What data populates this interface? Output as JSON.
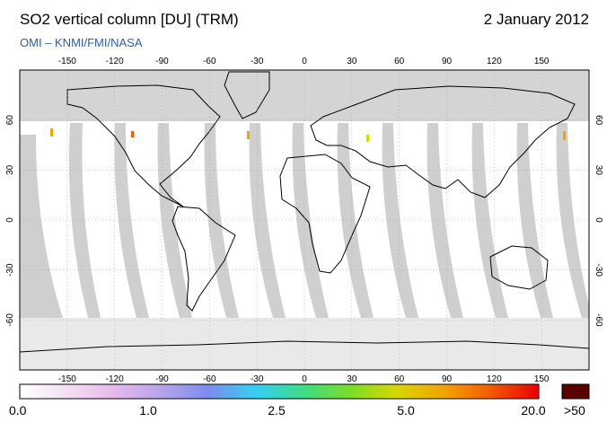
{
  "header": {
    "title": "SO2 vertical column [DU] (TRM)",
    "date": "2 January 2012",
    "credit": "OMI  –  KNMI/FMI/NASA"
  },
  "map": {
    "lon_ticks": [
      "-150",
      "-120",
      "-90",
      "-60",
      "-30",
      "0",
      "30",
      "60",
      "90",
      "120",
      "150"
    ],
    "lat_ticks": [
      "60",
      "30",
      "0",
      "-30",
      "-60"
    ],
    "colors": {
      "ocean": "#ffffff",
      "no_data": "#d4d4d4",
      "land_no_data": "#a8a8a8",
      "orbit_gap": "#cfcfcf",
      "coastline": "#000000"
    }
  },
  "colorbar": {
    "labels": [
      "0.0",
      "1.0",
      "2.5",
      "5.0",
      "20.0"
    ],
    "overflow_label": ">50",
    "overflow_color": "#5a0000",
    "gradient": [
      "#ffffff",
      "#f3e0f3",
      "#e7b9ec",
      "#b8a3ec",
      "#7b8cec",
      "#33d0f3",
      "#3ddc86",
      "#7bdd27",
      "#d9d700",
      "#f3a300",
      "#f35a00",
      "#e80000"
    ]
  }
}
